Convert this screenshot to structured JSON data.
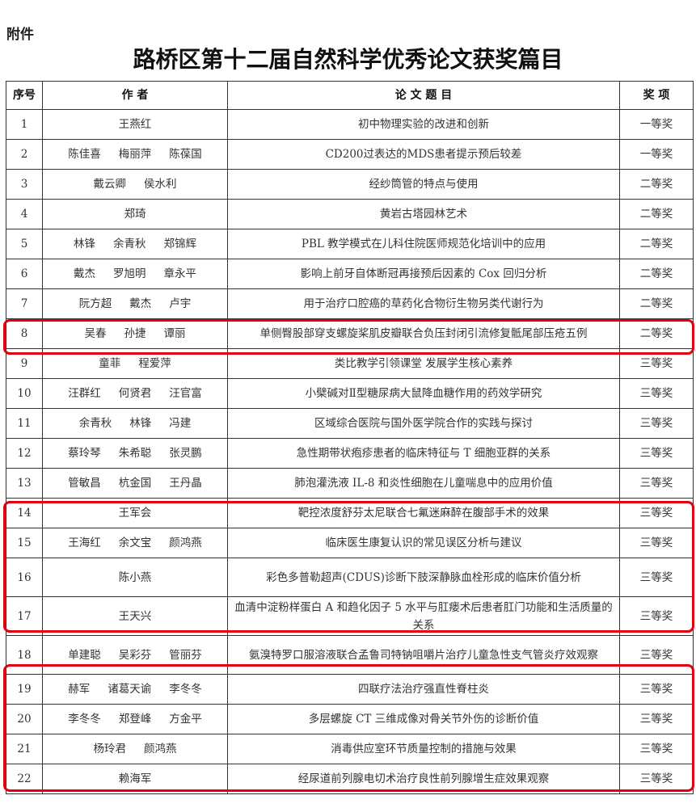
{
  "attachment_label": "附件",
  "title": "路桥区第十二届自然科学优秀论文获奖篇目",
  "headers": {
    "no": "序号",
    "authors": "作 者",
    "paper": "论 文 题 目",
    "award": "奖  项"
  },
  "highlight_color": "#e0000f",
  "rows": [
    {
      "no": "1",
      "authors": [
        "王燕红"
      ],
      "title": "初中物理实验的改进和创新",
      "award": "一等奖"
    },
    {
      "no": "2",
      "authors": [
        "陈佳喜",
        "梅丽萍",
        "陈葆国"
      ],
      "title": "CD200过表达的MDS患者提示预后较差",
      "award": "一等奖"
    },
    {
      "no": "3",
      "authors": [
        "戴云卿",
        "侯水利"
      ],
      "title": "经纱筒管的特点与使用",
      "award": "二等奖"
    },
    {
      "no": "4",
      "authors": [
        "郑琦"
      ],
      "title": "黄岩古塔园林艺术",
      "award": "二等奖"
    },
    {
      "no": "5",
      "authors": [
        "林锋",
        "余青秋",
        "郑锦辉"
      ],
      "title": "PBL 教学模式在儿科住院医师规范化培训中的应用",
      "award": "二等奖"
    },
    {
      "no": "6",
      "authors": [
        "戴杰",
        "罗旭明",
        "章永平"
      ],
      "title": "影响上前牙自体断冠再接预后因素的 Cox 回归分析",
      "award": "二等奖"
    },
    {
      "no": "7",
      "authors": [
        "阮方超",
        "戴杰",
        "卢宇"
      ],
      "title": "用于治疗口腔癌的草药化合物衍生物另类代谢行为",
      "award": "二等奖"
    },
    {
      "no": "8",
      "authors": [
        "吴春",
        "孙捷",
        "谭丽"
      ],
      "title": "单侧臀股部穿支螺旋桨肌皮瓣联合负压封闭引流修复骶尾部压疮五例",
      "award": "二等奖"
    },
    {
      "no": "9",
      "authors": [
        "童菲",
        "程爱萍"
      ],
      "title": "类比教学引领课堂 发展学生核心素养",
      "award": "三等奖"
    },
    {
      "no": "10",
      "authors": [
        "汪群红",
        "何贤君",
        "汪官富"
      ],
      "title": "小檗碱对Ⅱ型糖尿病大鼠降血糖作用的药效学研究",
      "award": "三等奖"
    },
    {
      "no": "11",
      "authors": [
        "余青秋",
        "林锋",
        "冯建"
      ],
      "title": "区域综合医院与国外医学院合作的实践与探讨",
      "award": "三等奖"
    },
    {
      "no": "12",
      "authors": [
        "蔡玲琴",
        "朱希聪",
        "张灵鹏"
      ],
      "title": "急性期带状疱疹患者的临床特征与 T 细胞亚群的关系",
      "award": "三等奖"
    },
    {
      "no": "13",
      "authors": [
        "管敏昌",
        "杭金国",
        "王丹晶"
      ],
      "title": "肺泡灌洗液 IL-8 和炎性细胞在儿童喘息中的应用价值",
      "award": "三等奖"
    },
    {
      "no": "14",
      "authors": [
        "王军会"
      ],
      "title": "靶控浓度舒芬太尼联合七氟迷麻醉在腹部手术的效果",
      "award": "三等奖"
    },
    {
      "no": "15",
      "authors": [
        "王海红",
        "余文宝",
        "颜鸿燕"
      ],
      "title": "临床医生康复认识的常见误区分析与建议",
      "award": "三等奖"
    },
    {
      "no": "16",
      "authors": [
        "陈小燕"
      ],
      "title": "彩色多普勒超声(CDUS)诊断下肢深静脉血栓形成的临床价值分析",
      "award": "三等奖"
    },
    {
      "no": "17",
      "authors": [
        "王天兴"
      ],
      "title": "血清中淀粉样蛋白 A 和趋化因子 5 水平与肛瘘术后患者肛门功能和生活质量的关系",
      "award": "三等奖"
    },
    {
      "no": "18",
      "authors": [
        "单建聪",
        "吴彩芬",
        "管丽芬"
      ],
      "title": "氨溴特罗口服溶液联合孟鲁司特钠咀嚼片治疗儿童急性支气管炎疗效观察",
      "award": "三等奖"
    },
    {
      "no": "19",
      "authors": [
        "赫军",
        "诸葛天谕",
        "李冬冬"
      ],
      "title": "四联疗法治疗强直性脊柱炎",
      "award": "三等奖"
    },
    {
      "no": "20",
      "authors": [
        "李冬冬",
        "郑登峰",
        "方金平"
      ],
      "title": "多层螺旋 CT 三维成像对骨关节外伤的诊断价值",
      "award": "三等奖"
    },
    {
      "no": "21",
      "authors": [
        "杨玲君",
        "颜鸿燕"
      ],
      "title": "消毒供应室环节质量控制的措施与效果",
      "award": "三等奖"
    },
    {
      "no": "22",
      "authors": [
        "赖海军"
      ],
      "title": "经尿道前列腺电切术治疗良性前列腺增生症效果观察",
      "award": "三等奖"
    }
  ]
}
